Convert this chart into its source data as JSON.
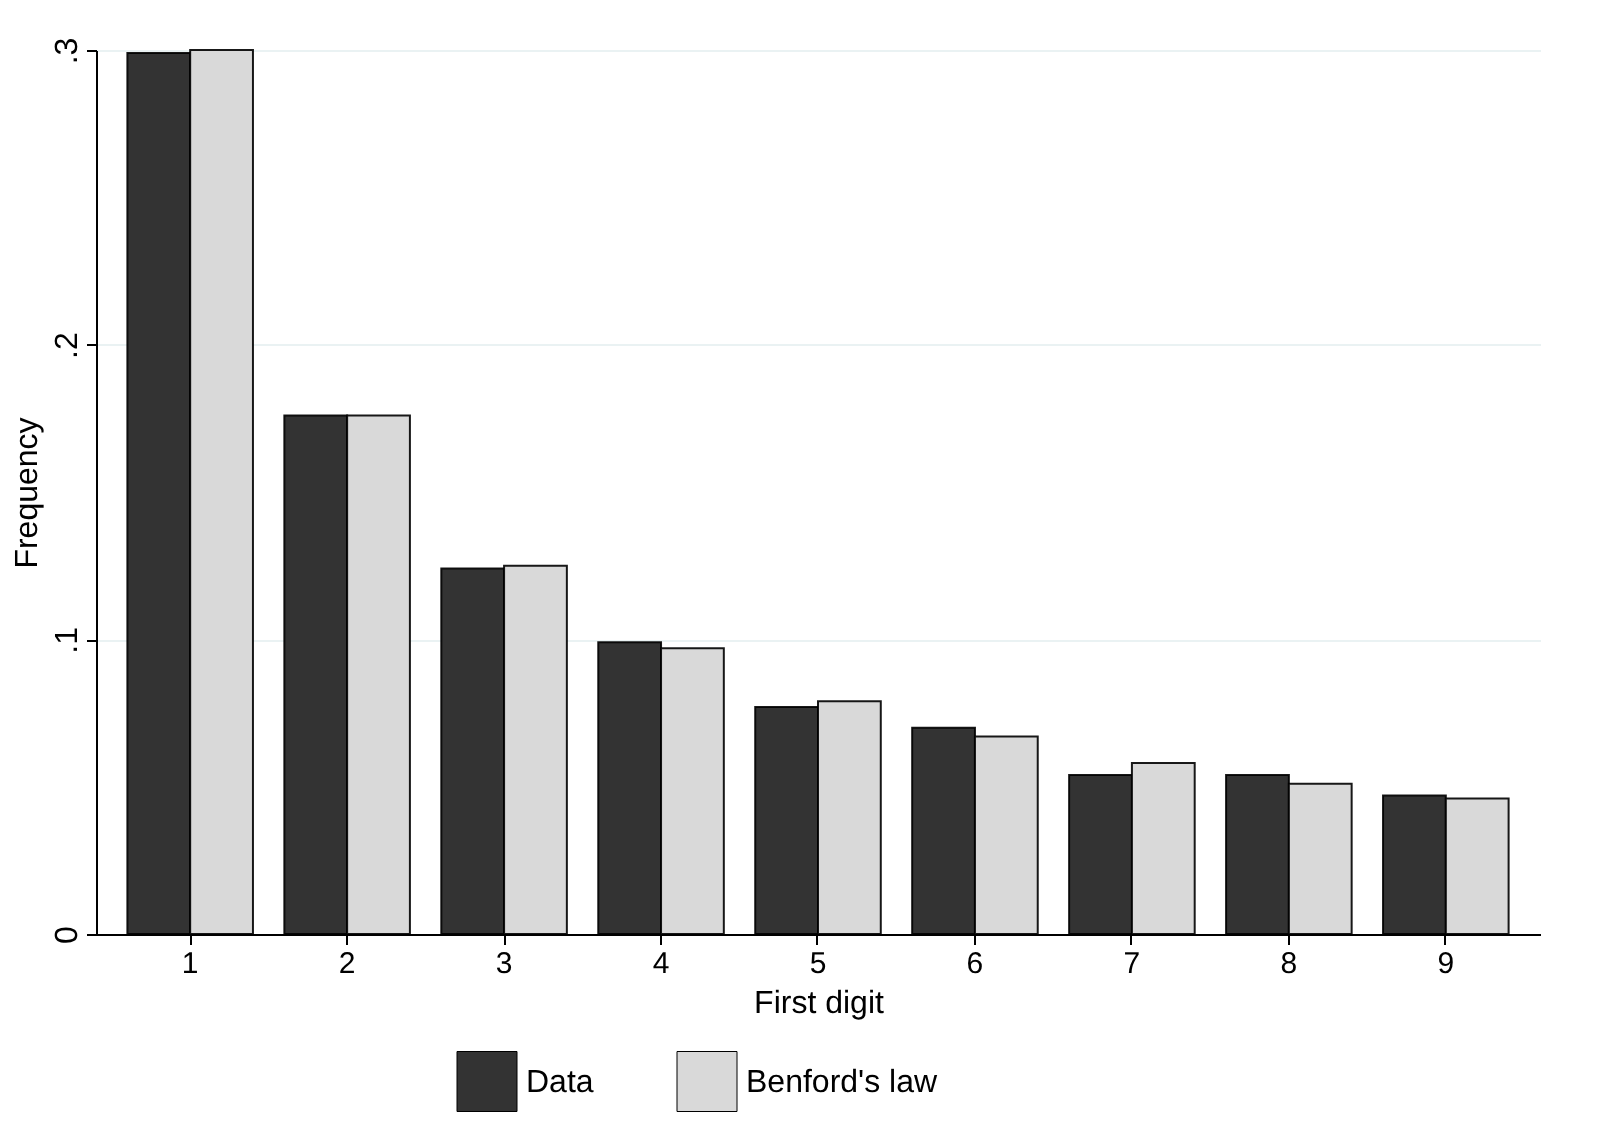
{
  "chart_data": {
    "type": "bar",
    "xlabel": "First digit",
    "ylabel": "Frequency",
    "categories": [
      "1",
      "2",
      "3",
      "4",
      "5",
      "6",
      "7",
      "8",
      "9"
    ],
    "series": [
      {
        "name": "Data",
        "color": "#333333",
        "values": [
          0.299,
          0.176,
          0.124,
          0.099,
          0.077,
          0.07,
          0.054,
          0.054,
          0.047
        ]
      },
      {
        "name": "Benford's law",
        "color": "#d9d9d9",
        "values": [
          0.3,
          0.176,
          0.125,
          0.097,
          0.079,
          0.067,
          0.058,
          0.051,
          0.046
        ]
      }
    ],
    "ylim": [
      0,
      0.3
    ],
    "yticks": [
      {
        "value": 0,
        "label": "0"
      },
      {
        "value": 0.1,
        "label": ".1"
      },
      {
        "value": 0.2,
        "label": ".2"
      },
      {
        "value": 0.3,
        "label": ".3"
      }
    ],
    "grid": "y",
    "legend": "bottom"
  }
}
